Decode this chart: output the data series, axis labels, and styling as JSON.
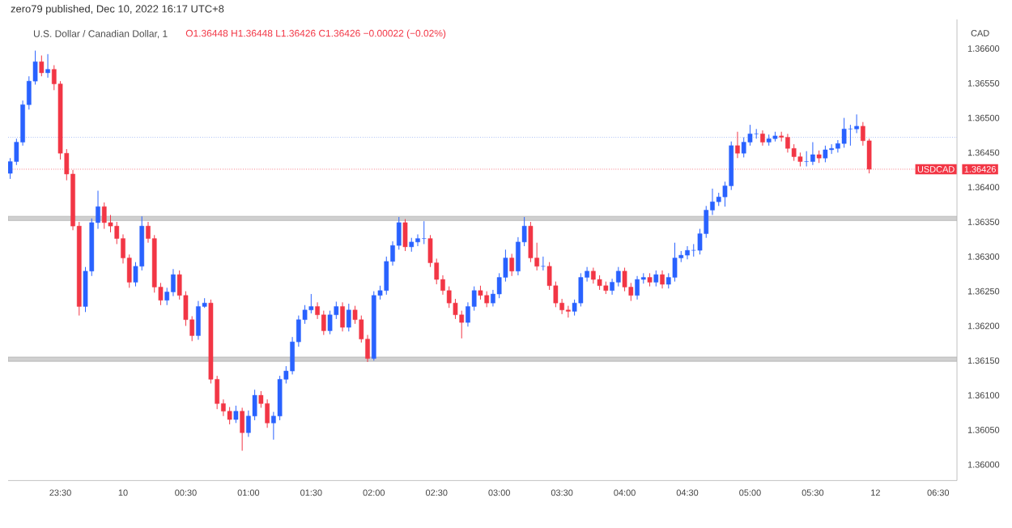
{
  "chart_data": {
    "type": "candlestick",
    "title": "zero79 published, Dec 10, 2022 16:17 UTC+8",
    "subtitle": "U.S. Dollar / Canadian Dollar, 1",
    "annotations": [
      "O1.36448  H1.36448  L1.36426  C1.36426  −0.00022 (−0.02%)"
    ],
    "ylabel": "CAD",
    "xlim": [
      "2022-12-09T23:05",
      "2022-12-10T06:39"
    ],
    "xticks": [
      {
        "value": "2022-12-09T23:30",
        "label": "23:30"
      },
      {
        "value": "2022-12-10T00:00",
        "label": "10"
      },
      {
        "value": "2022-12-10T00:30",
        "label": "00:30"
      },
      {
        "value": "2022-12-10T01:00",
        "label": "01:00"
      },
      {
        "value": "2022-12-10T01:30",
        "label": "01:30"
      },
      {
        "value": "2022-12-10T02:00",
        "label": "02:00"
      },
      {
        "value": "2022-12-10T02:30",
        "label": "02:30"
      },
      {
        "value": "2022-12-10T03:00",
        "label": "03:00"
      },
      {
        "value": "2022-12-10T03:30",
        "label": "03:30"
      },
      {
        "value": "2022-12-10T04:00",
        "label": "04:00"
      },
      {
        "value": "2022-12-10T04:30",
        "label": "04:30"
      },
      {
        "value": "2022-12-10T05:00",
        "label": "05:00"
      },
      {
        "value": "2022-12-10T05:30",
        "label": "05:30"
      },
      {
        "value": "2022-12-10T06:00",
        "label": "12"
      },
      {
        "value": "2022-12-10T06:30",
        "label": "06:30"
      }
    ],
    "ylim": [
      1.35977,
      1.36642
    ],
    "yticks": [
      {
        "value": 1.36,
        "label": "1.36000"
      },
      {
        "value": 1.3605,
        "label": "1.36050"
      },
      {
        "value": 1.361,
        "label": "1.36100"
      },
      {
        "value": 1.3615,
        "label": "1.36150"
      },
      {
        "value": 1.362,
        "label": "1.36200"
      },
      {
        "value": 1.3625,
        "label": "1.36250"
      },
      {
        "value": 1.363,
        "label": "1.36300"
      },
      {
        "value": 1.3635,
        "label": "1.36350"
      },
      {
        "value": 1.364,
        "label": "1.36400"
      },
      {
        "value": 1.36426,
        "label": "1.36426"
      },
      {
        "value": 1.3645,
        "label": "1.36450"
      },
      {
        "value": 1.365,
        "label": "1.36500"
      },
      {
        "value": 1.3655,
        "label": "1.36550"
      },
      {
        "value": 1.366,
        "label": "1.36600"
      }
    ],
    "ref_lines": [
      {
        "axis": "y",
        "value": 1.36472,
        "color": "#7b9cf0",
        "line_style": "dotted"
      },
      {
        "axis": "y",
        "value": 1.36426,
        "label": "USDCAD",
        "color": "#f23645",
        "line_style": "dotted"
      }
    ],
    "bands": [
      {
        "axis": "y",
        "from": 1.36352,
        "to": 1.36358,
        "color": "#b0b0b0"
      },
      {
        "axis": "y",
        "from": 1.36149,
        "to": 1.36155,
        "color": "#b0b0b0"
      }
    ],
    "x": [
      "2022-12-09T23:06",
      "2022-12-09T23:09",
      "2022-12-09T23:12",
      "2022-12-09T23:15",
      "2022-12-09T23:18",
      "2022-12-09T23:21",
      "2022-12-09T23:24",
      "2022-12-09T23:27",
      "2022-12-09T23:30",
      "2022-12-09T23:33",
      "2022-12-09T23:36",
      "2022-12-09T23:39",
      "2022-12-09T23:42",
      "2022-12-09T23:45",
      "2022-12-09T23:48",
      "2022-12-09T23:51",
      "2022-12-09T23:54",
      "2022-12-09T23:57",
      "2022-12-10T00:00",
      "2022-12-10T00:03",
      "2022-12-10T00:06",
      "2022-12-10T00:09",
      "2022-12-10T00:12",
      "2022-12-10T00:15",
      "2022-12-10T00:18",
      "2022-12-10T00:21",
      "2022-12-10T00:24",
      "2022-12-10T00:27",
      "2022-12-10T00:30",
      "2022-12-10T00:33",
      "2022-12-10T00:36",
      "2022-12-10T00:39",
      "2022-12-10T00:42",
      "2022-12-10T00:45",
      "2022-12-10T00:48",
      "2022-12-10T00:51",
      "2022-12-10T00:54",
      "2022-12-10T00:57",
      "2022-12-10T01:00",
      "2022-12-10T01:03",
      "2022-12-10T01:06",
      "2022-12-10T01:09",
      "2022-12-10T01:12",
      "2022-12-10T01:15",
      "2022-12-10T01:18",
      "2022-12-10T01:21",
      "2022-12-10T01:24",
      "2022-12-10T01:27",
      "2022-12-10T01:30",
      "2022-12-10T01:33",
      "2022-12-10T01:36",
      "2022-12-10T01:39",
      "2022-12-10T01:42",
      "2022-12-10T01:45",
      "2022-12-10T01:48",
      "2022-12-10T01:51",
      "2022-12-10T01:54",
      "2022-12-10T01:57",
      "2022-12-10T02:00",
      "2022-12-10T02:03",
      "2022-12-10T02:06",
      "2022-12-10T02:09",
      "2022-12-10T02:12",
      "2022-12-10T02:15",
      "2022-12-10T02:18",
      "2022-12-10T02:21",
      "2022-12-10T02:24",
      "2022-12-10T02:27",
      "2022-12-10T02:30",
      "2022-12-10T02:33",
      "2022-12-10T02:36",
      "2022-12-10T02:39",
      "2022-12-10T02:42",
      "2022-12-10T02:45",
      "2022-12-10T02:48",
      "2022-12-10T02:51",
      "2022-12-10T02:54",
      "2022-12-10T02:57",
      "2022-12-10T03:00",
      "2022-12-10T03:03",
      "2022-12-10T03:06",
      "2022-12-10T03:09",
      "2022-12-10T03:12",
      "2022-12-10T03:15",
      "2022-12-10T03:18",
      "2022-12-10T03:21",
      "2022-12-10T03:24",
      "2022-12-10T03:27",
      "2022-12-10T03:30",
      "2022-12-10T03:33",
      "2022-12-10T03:36",
      "2022-12-10T03:39",
      "2022-12-10T03:42",
      "2022-12-10T03:45",
      "2022-12-10T03:48",
      "2022-12-10T03:51",
      "2022-12-10T03:54",
      "2022-12-10T03:57",
      "2022-12-10T04:00",
      "2022-12-10T04:03",
      "2022-12-10T04:06",
      "2022-12-10T04:09",
      "2022-12-10T04:12",
      "2022-12-10T04:15",
      "2022-12-10T04:18",
      "2022-12-10T04:21",
      "2022-12-10T04:24",
      "2022-12-10T04:27",
      "2022-12-10T04:30",
      "2022-12-10T04:33",
      "2022-12-10T04:36",
      "2022-12-10T04:39",
      "2022-12-10T04:42",
      "2022-12-10T04:45",
      "2022-12-10T04:48",
      "2022-12-10T04:51",
      "2022-12-10T04:54",
      "2022-12-10T04:57",
      "2022-12-10T05:00",
      "2022-12-10T05:03",
      "2022-12-10T05:06",
      "2022-12-10T05:09",
      "2022-12-10T05:12",
      "2022-12-10T05:15",
      "2022-12-10T05:18",
      "2022-12-10T05:21",
      "2022-12-10T05:24",
      "2022-12-10T05:27",
      "2022-12-10T05:30",
      "2022-12-10T05:33",
      "2022-12-10T05:36",
      "2022-12-10T05:39",
      "2022-12-10T05:42",
      "2022-12-10T05:45",
      "2022-12-10T05:48",
      "2022-12-10T05:51",
      "2022-12-10T05:54",
      "2022-12-10T05:57"
    ],
    "colors": [
      "#2962ff",
      "#2962ff",
      "#2962ff",
      "#2962ff",
      "#2962ff",
      "#f23645",
      "#2962ff",
      "#f23645",
      "#f23645",
      "#f23645",
      "#f23645",
      "#f23645",
      "#2962ff",
      "#2962ff",
      "#2962ff",
      "#f23645",
      "#f23645",
      "#f23645",
      "#f23645",
      "#f23645",
      "#2962ff",
      "#2962ff",
      "#f23645",
      "#f23645",
      "#f23645",
      "#2962ff",
      "#2962ff",
      "#f23645",
      "#f23645",
      "#f23645",
      "#2962ff",
      "#2962ff",
      "#f23645",
      "#f23645",
      "#f23645",
      "#f23645",
      "#2962ff",
      "#f23645",
      "#2962ff",
      "#2962ff",
      "#f23645",
      "#f23645",
      "#2962ff",
      "#2962ff",
      "#2962ff",
      "#2962ff",
      "#2962ff",
      "#2962ff",
      "#2962ff",
      "#f23645",
      "#f23645",
      "#2962ff",
      "#2962ff",
      "#f23645",
      "#2962ff",
      "#f23645",
      "#f23645",
      "#f23645",
      "#2962ff",
      "#2962ff",
      "#2962ff",
      "#2962ff",
      "#2962ff",
      "#f23645",
      "#2962ff",
      "#2962ff",
      "#2962ff",
      "#f23645",
      "#f23645",
      "#f23645",
      "#f23645",
      "#f23645",
      "#f23645",
      "#2962ff",
      "#2962ff",
      "#f23645",
      "#f23645",
      "#2962ff",
      "#2962ff",
      "#2962ff",
      "#f23645",
      "#2962ff",
      "#2962ff",
      "#f23645",
      "#f23645",
      "#2962ff",
      "#f23645",
      "#f23645",
      "#f23645",
      "#f23645",
      "#2962ff",
      "#2962ff",
      "#2962ff",
      "#f23645",
      "#f23645",
      "#f23645",
      "#2962ff",
      "#2962ff",
      "#f23645",
      "#f23645",
      "#2962ff",
      "#2962ff",
      "#f23645",
      "#2962ff",
      "#f23645",
      "#2962ff",
      "#2962ff",
      "#2962ff",
      "#2962ff",
      "#2962ff",
      "#2962ff",
      "#2962ff",
      "#2962ff",
      "#2962ff",
      "#2962ff",
      "#2962ff",
      "#f23645",
      "#2962ff",
      "#2962ff",
      "#2962ff",
      "#f23645",
      "#2962ff",
      "#2962ff",
      "#f23645",
      "#f23645",
      "#f23645",
      "#f23645",
      "#2962ff",
      "#2962ff",
      "#f23645",
      "#2962ff",
      "#2962ff",
      "#2962ff",
      "#2962ff",
      "#2962ff",
      "#2962ff",
      "#f23645",
      "#f23645"
    ],
    "ohlc": [
      [
        1.3642,
        1.36442,
        1.36412,
        1.36437
      ],
      [
        1.36437,
        1.3647,
        1.36432,
        1.36465
      ],
      [
        1.36465,
        1.36525,
        1.3646,
        1.36519
      ],
      [
        1.36519,
        1.3656,
        1.36512,
        1.36553
      ],
      [
        1.36553,
        1.36597,
        1.36548,
        1.36581
      ],
      [
        1.36581,
        1.3659,
        1.3656,
        1.36565
      ],
      [
        1.36565,
        1.36592,
        1.36558,
        1.3657
      ],
      [
        1.3657,
        1.36576,
        1.3654,
        1.36549
      ],
      [
        1.36549,
        1.36553,
        1.3644,
        1.36449
      ],
      [
        1.36449,
        1.36455,
        1.3641,
        1.36419
      ],
      [
        1.36419,
        1.36425,
        1.36338,
        1.36344
      ],
      [
        1.36344,
        1.3635,
        1.36215,
        1.36228
      ],
      [
        1.36228,
        1.36285,
        1.3622,
        1.36279
      ],
      [
        1.36279,
        1.36355,
        1.36272,
        1.36349
      ],
      [
        1.36349,
        1.36395,
        1.3634,
        1.36372
      ],
      [
        1.36372,
        1.36378,
        1.3634,
        1.36349
      ],
      [
        1.36349,
        1.3636,
        1.36335,
        1.36344
      ],
      [
        1.36344,
        1.3635,
        1.36318,
        1.36326
      ],
      [
        1.36326,
        1.36332,
        1.3629,
        1.36298
      ],
      [
        1.36298,
        1.36303,
        1.36255,
        1.36263
      ],
      [
        1.36263,
        1.36292,
        1.36257,
        1.36286
      ],
      [
        1.36286,
        1.36358,
        1.3628,
        1.36344
      ],
      [
        1.36344,
        1.3635,
        1.3632,
        1.36326
      ],
      [
        1.36326,
        1.36331,
        1.36248,
        1.36256
      ],
      [
        1.36256,
        1.36262,
        1.3623,
        1.36237
      ],
      [
        1.36237,
        1.36255,
        1.3623,
        1.36249
      ],
      [
        1.36249,
        1.36282,
        1.36243,
        1.36274
      ],
      [
        1.36274,
        1.3628,
        1.36238,
        1.36244
      ],
      [
        1.36244,
        1.3625,
        1.362,
        1.36209
      ],
      [
        1.36209,
        1.36214,
        1.36178,
        1.36186
      ],
      [
        1.36186,
        1.36236,
        1.3618,
        1.36228
      ],
      [
        1.36228,
        1.3624,
        1.36226,
        1.36233
      ],
      [
        1.36233,
        1.36238,
        1.36117,
        1.36123
      ],
      [
        1.36123,
        1.36128,
        1.3608,
        1.36088
      ],
      [
        1.36088,
        1.36094,
        1.3607,
        1.36077
      ],
      [
        1.36077,
        1.36083,
        1.36058,
        1.36065
      ],
      [
        1.36065,
        1.36085,
        1.3606,
        1.36077
      ],
      [
        1.36077,
        1.36082,
        1.3602,
        1.36046
      ],
      [
        1.36046,
        1.36078,
        1.3604,
        1.3607
      ],
      [
        1.3607,
        1.36108,
        1.36064,
        1.361
      ],
      [
        1.361,
        1.36106,
        1.36082,
        1.36088
      ],
      [
        1.36088,
        1.36094,
        1.36053,
        1.3606
      ],
      [
        1.3606,
        1.36076,
        1.36036,
        1.3607
      ],
      [
        1.3607,
        1.36128,
        1.36064,
        1.36123
      ],
      [
        1.36123,
        1.36142,
        1.36117,
        1.36135
      ],
      [
        1.36135,
        1.36184,
        1.3613,
        1.36177
      ],
      [
        1.36177,
        1.36215,
        1.3617,
        1.36209
      ],
      [
        1.36209,
        1.3623,
        1.36203,
        1.36223
      ],
      [
        1.36223,
        1.36246,
        1.36218,
        1.36228
      ],
      [
        1.36228,
        1.36234,
        1.3621,
        1.36216
      ],
      [
        1.36216,
        1.36222,
        1.36187,
        1.36193
      ],
      [
        1.36193,
        1.36222,
        1.36188,
        1.36216
      ],
      [
        1.36216,
        1.36235,
        1.3621,
        1.36228
      ],
      [
        1.36228,
        1.36234,
        1.36192,
        1.36198
      ],
      [
        1.36198,
        1.36232,
        1.36192,
        1.36223
      ],
      [
        1.36223,
        1.36229,
        1.36203,
        1.36209
      ],
      [
        1.36209,
        1.36215,
        1.36176,
        1.36181
      ],
      [
        1.36181,
        1.36187,
        1.36148,
        1.36153
      ],
      [
        1.36153,
        1.3625,
        1.3615,
        1.36244
      ],
      [
        1.36244,
        1.36258,
        1.36238,
        1.36251
      ],
      [
        1.36251,
        1.363,
        1.36245,
        1.36293
      ],
      [
        1.36293,
        1.36322,
        1.36287,
        1.36316
      ],
      [
        1.36316,
        1.36357,
        1.3631,
        1.36349
      ],
      [
        1.36349,
        1.36354,
        1.36308,
        1.36314
      ],
      [
        1.36314,
        1.36327,
        1.36307,
        1.36321
      ],
      [
        1.36321,
        1.36332,
        1.36315,
        1.36326
      ],
      [
        1.36326,
        1.36351,
        1.36318,
        1.36326
      ],
      [
        1.36326,
        1.36331,
        1.36285,
        1.36291
      ],
      [
        1.36291,
        1.36297,
        1.3626,
        1.36267
      ],
      [
        1.36267,
        1.36273,
        1.36245,
        1.36251
      ],
      [
        1.36251,
        1.36257,
        1.36226,
        1.36233
      ],
      [
        1.36233,
        1.36239,
        1.3621,
        1.36216
      ],
      [
        1.36216,
        1.36222,
        1.36182,
        1.36205
      ],
      [
        1.36205,
        1.36234,
        1.36199,
        1.36228
      ],
      [
        1.36228,
        1.36257,
        1.36222,
        1.36251
      ],
      [
        1.36251,
        1.36258,
        1.36238,
        1.36244
      ],
      [
        1.36244,
        1.3625,
        1.36227,
        1.36233
      ],
      [
        1.36233,
        1.36252,
        1.36228,
        1.36246
      ],
      [
        1.36246,
        1.36276,
        1.3624,
        1.3627
      ],
      [
        1.3627,
        1.3631,
        1.36264,
        1.36298
      ],
      [
        1.36298,
        1.36304,
        1.36272,
        1.36279
      ],
      [
        1.36279,
        1.36328,
        1.36273,
        1.36321
      ],
      [
        1.36321,
        1.36357,
        1.36315,
        1.36344
      ],
      [
        1.36344,
        1.3635,
        1.36292,
        1.36298
      ],
      [
        1.36298,
        1.3632,
        1.3628,
        1.36286
      ],
      [
        1.36286,
        1.363,
        1.3628,
        1.36286
      ],
      [
        1.36286,
        1.36292,
        1.36252,
        1.36258
      ],
      [
        1.36258,
        1.36264,
        1.36227,
        1.36233
      ],
      [
        1.36233,
        1.36239,
        1.36217,
        1.36223
      ],
      [
        1.36223,
        1.36229,
        1.36212,
        1.36221
      ],
      [
        1.36221,
        1.36238,
        1.36215,
        1.36233
      ],
      [
        1.36233,
        1.36276,
        1.36228,
        1.3627
      ],
      [
        1.3627,
        1.36285,
        1.36264,
        1.36279
      ],
      [
        1.36279,
        1.36284,
        1.36261,
        1.36267
      ],
      [
        1.36267,
        1.36273,
        1.36252,
        1.36258
      ],
      [
        1.36258,
        1.36264,
        1.36246,
        1.36251
      ],
      [
        1.36251,
        1.36268,
        1.36245,
        1.36263
      ],
      [
        1.36263,
        1.36285,
        1.36257,
        1.36279
      ],
      [
        1.36279,
        1.36284,
        1.3625,
        1.36256
      ],
      [
        1.36256,
        1.36262,
        1.36236,
        1.36244
      ],
      [
        1.36244,
        1.36272,
        1.36238,
        1.36267
      ],
      [
        1.36267,
        1.36276,
        1.36261,
        1.3627
      ],
      [
        1.3627,
        1.36276,
        1.36257,
        1.36263
      ],
      [
        1.36263,
        1.3628,
        1.36257,
        1.36274
      ],
      [
        1.36274,
        1.3628,
        1.36254,
        1.3626
      ],
      [
        1.3626,
        1.36276,
        1.36254,
        1.3627
      ],
      [
        1.3627,
        1.3632,
        1.36264,
        1.36298
      ],
      [
        1.36298,
        1.36308,
        1.36292,
        1.36302
      ],
      [
        1.36302,
        1.36315,
        1.36296,
        1.36309
      ],
      [
        1.36309,
        1.36318,
        1.363,
        1.36309
      ],
      [
        1.36309,
        1.3634,
        1.36303,
        1.36333
      ],
      [
        1.36333,
        1.36373,
        1.36327,
        1.36367
      ],
      [
        1.36367,
        1.36398,
        1.3636,
        1.36379
      ],
      [
        1.36379,
        1.36392,
        1.36373,
        1.36386
      ],
      [
        1.36386,
        1.36408,
        1.36372,
        1.36402
      ],
      [
        1.36402,
        1.36466,
        1.36396,
        1.3646
      ],
      [
        1.3646,
        1.3648,
        1.36442,
        1.36449
      ],
      [
        1.36449,
        1.36472,
        1.36443,
        1.36465
      ],
      [
        1.36465,
        1.3649,
        1.3646,
        1.36477
      ],
      [
        1.36477,
        1.36484,
        1.3647,
        1.36477
      ],
      [
        1.36477,
        1.36482,
        1.3646,
        1.36465
      ],
      [
        1.36465,
        1.36476,
        1.3646,
        1.3647
      ],
      [
        1.3647,
        1.3648,
        1.36466,
        1.36474
      ],
      [
        1.36474,
        1.3648,
        1.36466,
        1.36472
      ],
      [
        1.36472,
        1.36477,
        1.3645,
        1.36456
      ],
      [
        1.36456,
        1.36462,
        1.36438,
        1.36444
      ],
      [
        1.36444,
        1.3645,
        1.3643,
        1.36437
      ],
      [
        1.36437,
        1.36452,
        1.3643,
        1.36437
      ],
      [
        1.36437,
        1.36465,
        1.36432,
        1.36447
      ],
      [
        1.36447,
        1.36453,
        1.36435,
        1.36442
      ],
      [
        1.36442,
        1.3646,
        1.36436,
        1.36454
      ],
      [
        1.36454,
        1.36462,
        1.36448,
        1.36456
      ],
      [
        1.36456,
        1.36468,
        1.3645,
        1.36463
      ],
      [
        1.36463,
        1.365,
        1.36457,
        1.36484
      ],
      [
        1.36484,
        1.3649,
        1.3646,
        1.36484
      ],
      [
        1.36484,
        1.36505,
        1.36478,
        1.36488
      ],
      [
        1.36488,
        1.36494,
        1.3646,
        1.36467
      ],
      [
        1.36467,
        1.3647,
        1.3642,
        1.36426
      ]
    ]
  }
}
